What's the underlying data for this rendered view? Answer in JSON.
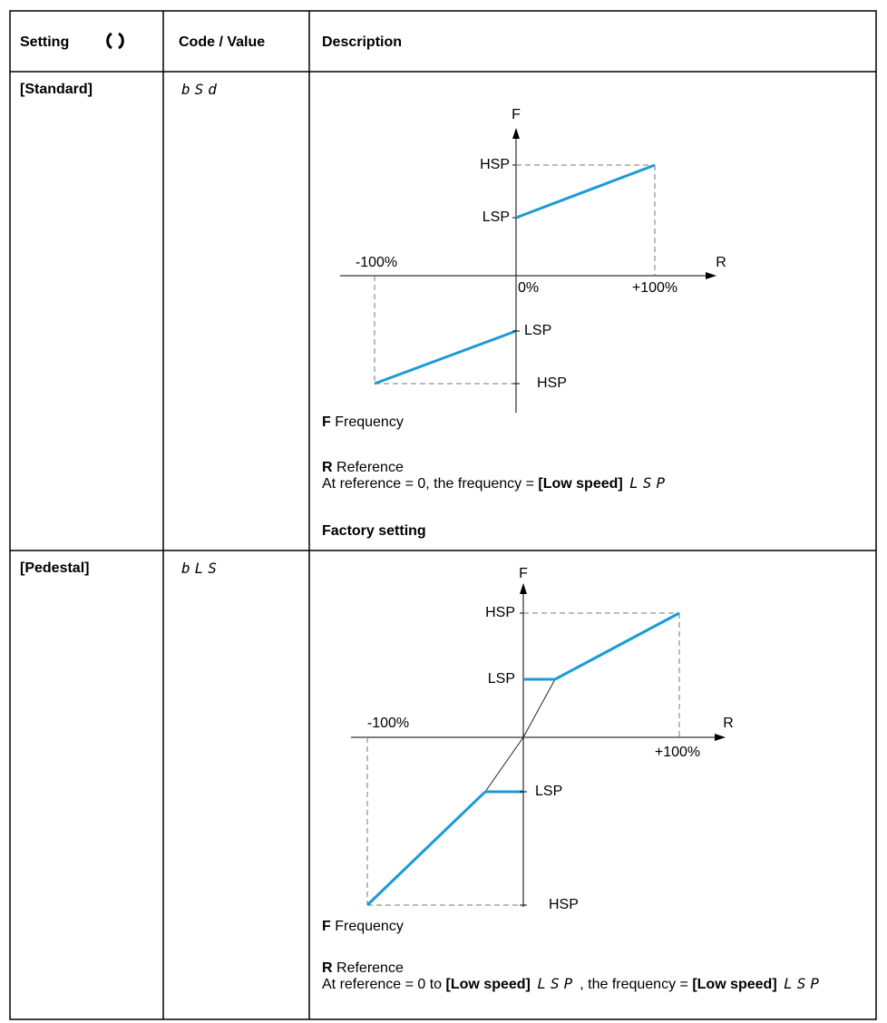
{
  "header": {
    "setting": "Setting",
    "code": "Code / Value",
    "description": "Description"
  },
  "rows": [
    {
      "setting": "[Standard]",
      "code": "bSd",
      "diagram": {
        "y_axis": "F",
        "x_axis": "R",
        "hsp_top": "HSP",
        "lsp_top": "LSP",
        "neg": "-100%",
        "zero": "0%",
        "pos": "+100%",
        "lsp_bottom": "LSP",
        "hsp_bottom": "HSP"
      },
      "legend": [
        {
          "key": "F",
          "text": "Frequency"
        },
        {
          "key": "R",
          "text": "Reference"
        }
      ],
      "note": [
        {
          "text": "At reference = 0, the frequency = ",
          "style": "plain"
        },
        {
          "text": "[Low speed]",
          "style": "bold"
        },
        {
          "text": "LSP",
          "style": "code"
        }
      ],
      "footer": "Factory setting"
    },
    {
      "setting": "[Pedestal]",
      "code": "bLS",
      "diagram": {
        "y_axis": "F",
        "x_axis": "R",
        "hsp_top": "HSP",
        "lsp_top": "LSP",
        "neg": "-100%",
        "pos": "+100%",
        "lsp_bottom": "LSP",
        "hsp_bottom": "HSP"
      },
      "legend": [
        {
          "key": "F",
          "text": "Frequency"
        },
        {
          "key": "R",
          "text": "Reference"
        }
      ],
      "note": [
        {
          "text": "At reference = 0 to ",
          "style": "plain"
        },
        {
          "text": "[Low speed]",
          "style": "bold"
        },
        {
          "text": "LSP",
          "style": "code"
        },
        {
          "text": ", the frequency = ",
          "style": "plain"
        },
        {
          "text": "[Low speed]",
          "style": "bold"
        },
        {
          "text": "LSP",
          "style": "code"
        }
      ]
    }
  ]
}
